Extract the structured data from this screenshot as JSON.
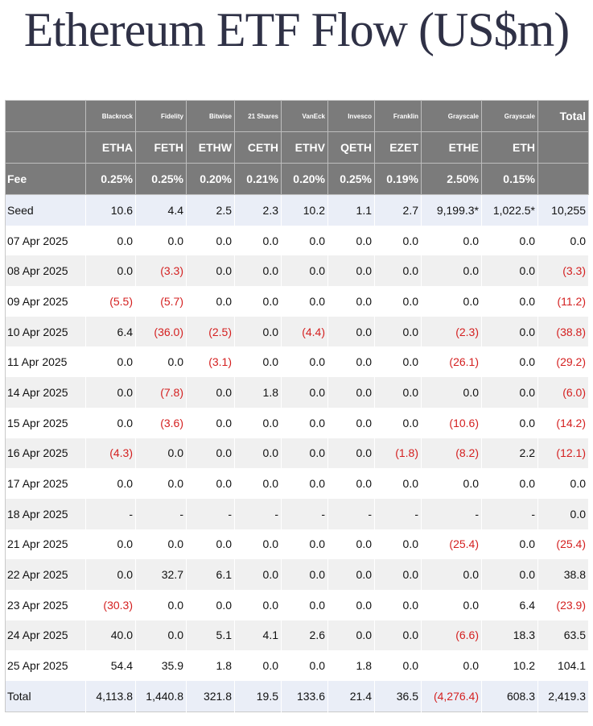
{
  "title": "Ethereum ETF Flow (US$m)",
  "issuers": [
    "Blackrock",
    "Fidelity",
    "Bitwise",
    "21 Shares",
    "VanEck",
    "Invesco",
    "Franklin",
    "Grayscale",
    "Grayscale"
  ],
  "total_header": "Total",
  "tickers": [
    "ETHA",
    "FETH",
    "ETHW",
    "CETH",
    "ETHV",
    "QETH",
    "EZET",
    "ETHE",
    "ETH"
  ],
  "fee_label": "Fee",
  "fees": [
    "0.25%",
    "0.25%",
    "0.20%",
    "0.21%",
    "0.20%",
    "0.25%",
    "0.19%",
    "2.50%",
    "0.15%"
  ],
  "rows": [
    {
      "label": "Seed",
      "values": [
        "10.6",
        "4.4",
        "2.5",
        "2.3",
        "10.2",
        "1.1",
        "2.7",
        "9,199.3*",
        "1,022.5*",
        "10,255"
      ]
    },
    {
      "label": "07 Apr 2025",
      "values": [
        "0.0",
        "0.0",
        "0.0",
        "0.0",
        "0.0",
        "0.0",
        "0.0",
        "0.0",
        "0.0",
        "0.0"
      ]
    },
    {
      "label": "08 Apr 2025",
      "values": [
        "0.0",
        "(3.3)",
        "0.0",
        "0.0",
        "0.0",
        "0.0",
        "0.0",
        "0.0",
        "0.0",
        "(3.3)"
      ]
    },
    {
      "label": "09 Apr 2025",
      "values": [
        "(5.5)",
        "(5.7)",
        "0.0",
        "0.0",
        "0.0",
        "0.0",
        "0.0",
        "0.0",
        "0.0",
        "(11.2)"
      ]
    },
    {
      "label": "10 Apr 2025",
      "values": [
        "6.4",
        "(36.0)",
        "(2.5)",
        "0.0",
        "(4.4)",
        "0.0",
        "0.0",
        "(2.3)",
        "0.0",
        "(38.8)"
      ]
    },
    {
      "label": "11 Apr 2025",
      "values": [
        "0.0",
        "0.0",
        "(3.1)",
        "0.0",
        "0.0",
        "0.0",
        "0.0",
        "(26.1)",
        "0.0",
        "(29.2)"
      ]
    },
    {
      "label": "14 Apr 2025",
      "values": [
        "0.0",
        "(7.8)",
        "0.0",
        "1.8",
        "0.0",
        "0.0",
        "0.0",
        "0.0",
        "0.0",
        "(6.0)"
      ]
    },
    {
      "label": "15 Apr 2025",
      "values": [
        "0.0",
        "(3.6)",
        "0.0",
        "0.0",
        "0.0",
        "0.0",
        "0.0",
        "(10.6)",
        "0.0",
        "(14.2)"
      ]
    },
    {
      "label": "16 Apr 2025",
      "values": [
        "(4.3)",
        "0.0",
        "0.0",
        "0.0",
        "0.0",
        "0.0",
        "(1.8)",
        "(8.2)",
        "2.2",
        "(12.1)"
      ]
    },
    {
      "label": "17 Apr 2025",
      "values": [
        "0.0",
        "0.0",
        "0.0",
        "0.0",
        "0.0",
        "0.0",
        "0.0",
        "0.0",
        "0.0",
        "0.0"
      ]
    },
    {
      "label": "18 Apr 2025",
      "values": [
        "-",
        "-",
        "-",
        "-",
        "-",
        "-",
        "-",
        "-",
        "-",
        "0.0"
      ]
    },
    {
      "label": "21 Apr 2025",
      "values": [
        "0.0",
        "0.0",
        "0.0",
        "0.0",
        "0.0",
        "0.0",
        "0.0",
        "(25.4)",
        "0.0",
        "(25.4)"
      ]
    },
    {
      "label": "22 Apr 2025",
      "values": [
        "0.0",
        "32.7",
        "6.1",
        "0.0",
        "0.0",
        "0.0",
        "0.0",
        "0.0",
        "0.0",
        "38.8"
      ]
    },
    {
      "label": "23 Apr 2025",
      "values": [
        "(30.3)",
        "0.0",
        "0.0",
        "0.0",
        "0.0",
        "0.0",
        "0.0",
        "0.0",
        "6.4",
        "(23.9)"
      ]
    },
    {
      "label": "24 Apr 2025",
      "values": [
        "40.0",
        "0.0",
        "5.1",
        "4.1",
        "2.6",
        "0.0",
        "0.0",
        "(6.6)",
        "18.3",
        "63.5"
      ]
    },
    {
      "label": "25 Apr 2025",
      "values": [
        "54.4",
        "35.9",
        "1.8",
        "0.0",
        "0.0",
        "1.8",
        "0.0",
        "0.0",
        "10.2",
        "104.1"
      ]
    }
  ],
  "total_row": {
    "label": "Total",
    "values": [
      "4,113.8",
      "1,440.8",
      "321.8",
      "19.5",
      "133.6",
      "21.4",
      "36.5",
      "(4,276.4)",
      "608.3",
      "2,419.3"
    ]
  },
  "colors": {
    "header_bg": "#7b7b7b",
    "negative": "#d42020",
    "highlight_row": "#eaeef7",
    "stripe": "#f0f0f0",
    "title": "#2f3146"
  }
}
